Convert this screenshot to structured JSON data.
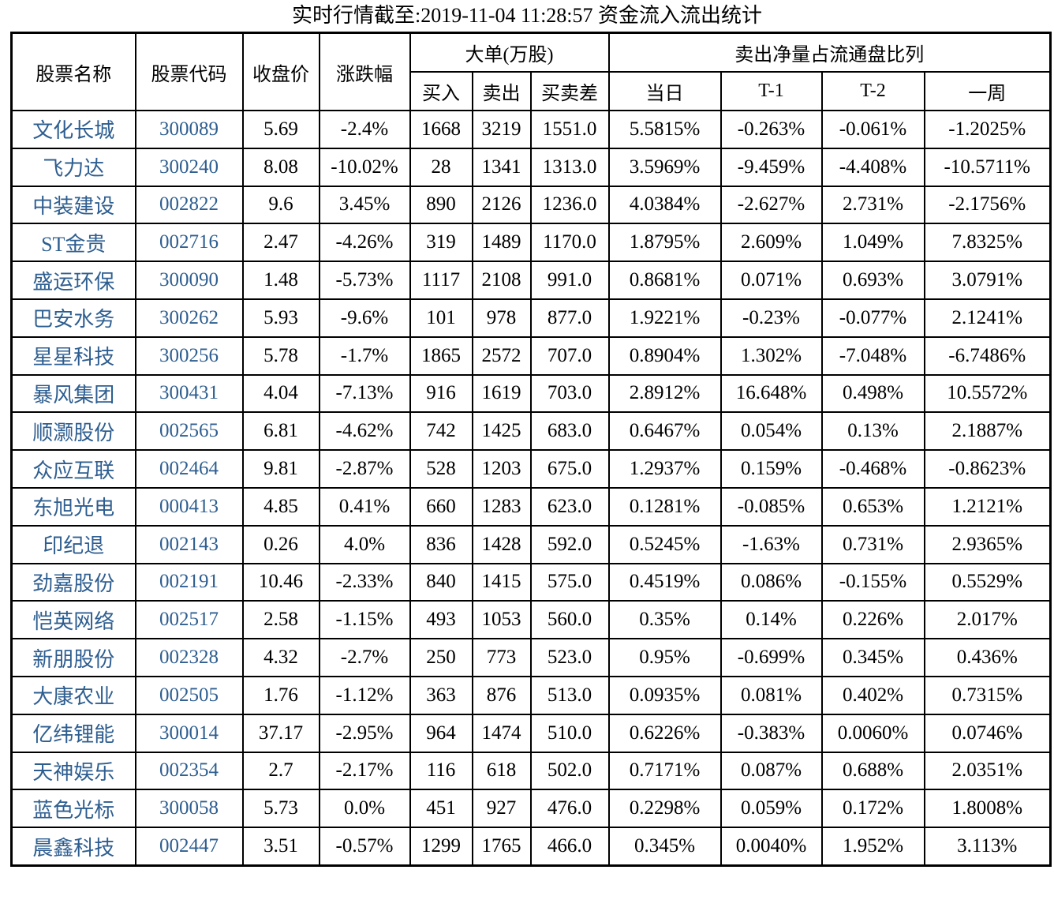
{
  "title": "实时行情截至:2019-11-04 11:28:57 资金流入流出统计",
  "colors": {
    "stock_link_blue": "#2e5e90",
    "text_black": "#000000",
    "border_black": "#000000",
    "page_background": "#ffffff"
  },
  "chart_data": {
    "type": "table",
    "title": "实时行情截至:2019-11-04 11:28:57 资金流入流出统计",
    "header_groups": {
      "big_orders": "大单(万股)",
      "net_sell_ratio": "卖出净量占流通盘比列"
    },
    "columns": {
      "stock_name": "股票名称",
      "stock_code": "股票代码",
      "close_price": "收盘价",
      "change_pct": "涨跌幅",
      "buy": "买入",
      "sell": "卖出",
      "buy_sell_diff": "买卖差",
      "today": "当日",
      "t_minus_1": "T-1",
      "t_minus_2": "T-2",
      "one_week": "一周"
    },
    "rows": [
      [
        "文化长城",
        "300089",
        "5.69",
        "-2.4%",
        "1668",
        "3219",
        "1551.0",
        "5.5815%",
        "-0.263%",
        "-0.061%",
        "-1.2025%"
      ],
      [
        "飞力达",
        "300240",
        "8.08",
        "-10.02%",
        "28",
        "1341",
        "1313.0",
        "3.5969%",
        "-9.459%",
        "-4.408%",
        "-10.5711%"
      ],
      [
        "中装建设",
        "002822",
        "9.6",
        "3.45%",
        "890",
        "2126",
        "1236.0",
        "4.0384%",
        "-2.627%",
        "2.731%",
        "-2.1756%"
      ],
      [
        "ST金贵",
        "002716",
        "2.47",
        "-4.26%",
        "319",
        "1489",
        "1170.0",
        "1.8795%",
        "2.609%",
        "1.049%",
        "7.8325%"
      ],
      [
        "盛运环保",
        "300090",
        "1.48",
        "-5.73%",
        "1117",
        "2108",
        "991.0",
        "0.8681%",
        "0.071%",
        "0.693%",
        "3.0791%"
      ],
      [
        "巴安水务",
        "300262",
        "5.93",
        "-9.6%",
        "101",
        "978",
        "877.0",
        "1.9221%",
        "-0.23%",
        "-0.077%",
        "2.1241%"
      ],
      [
        "星星科技",
        "300256",
        "5.78",
        "-1.7%",
        "1865",
        "2572",
        "707.0",
        "0.8904%",
        "1.302%",
        "-7.048%",
        "-6.7486%"
      ],
      [
        "暴风集团",
        "300431",
        "4.04",
        "-7.13%",
        "916",
        "1619",
        "703.0",
        "2.8912%",
        "16.648%",
        "0.498%",
        "10.5572%"
      ],
      [
        "顺灏股份",
        "002565",
        "6.81",
        "-4.62%",
        "742",
        "1425",
        "683.0",
        "0.6467%",
        "0.054%",
        "0.13%",
        "2.1887%"
      ],
      [
        "众应互联",
        "002464",
        "9.81",
        "-2.87%",
        "528",
        "1203",
        "675.0",
        "1.2937%",
        "0.159%",
        "-0.468%",
        "-0.8623%"
      ],
      [
        "东旭光电",
        "000413",
        "4.85",
        "0.41%",
        "660",
        "1283",
        "623.0",
        "0.1281%",
        "-0.085%",
        "0.653%",
        "1.2121%"
      ],
      [
        "印纪退",
        "002143",
        "0.26",
        "4.0%",
        "836",
        "1428",
        "592.0",
        "0.5245%",
        "-1.63%",
        "0.731%",
        "2.9365%"
      ],
      [
        "劲嘉股份",
        "002191",
        "10.46",
        "-2.33%",
        "840",
        "1415",
        "575.0",
        "0.4519%",
        "0.086%",
        "-0.155%",
        "0.5529%"
      ],
      [
        "恺英网络",
        "002517",
        "2.58",
        "-1.15%",
        "493",
        "1053",
        "560.0",
        "0.35%",
        "0.14%",
        "0.226%",
        "2.017%"
      ],
      [
        "新朋股份",
        "002328",
        "4.32",
        "-2.7%",
        "250",
        "773",
        "523.0",
        "0.95%",
        "-0.699%",
        "0.345%",
        "0.436%"
      ],
      [
        "大康农业",
        "002505",
        "1.76",
        "-1.12%",
        "363",
        "876",
        "513.0",
        "0.0935%",
        "0.081%",
        "0.402%",
        "0.7315%"
      ],
      [
        "亿纬锂能",
        "300014",
        "37.17",
        "-2.95%",
        "964",
        "1474",
        "510.0",
        "0.6226%",
        "-0.383%",
        "0.0060%",
        "0.0746%"
      ],
      [
        "天神娱乐",
        "002354",
        "2.7",
        "-2.17%",
        "116",
        "618",
        "502.0",
        "0.7171%",
        "0.087%",
        "0.688%",
        "2.0351%"
      ],
      [
        "蓝色光标",
        "300058",
        "5.73",
        "0.0%",
        "451",
        "927",
        "476.0",
        "0.2298%",
        "0.059%",
        "0.172%",
        "1.8008%"
      ],
      [
        "晨鑫科技",
        "002447",
        "3.51",
        "-0.57%",
        "1299",
        "1765",
        "466.0",
        "0.345%",
        "0.0040%",
        "1.952%",
        "3.113%"
      ]
    ]
  }
}
